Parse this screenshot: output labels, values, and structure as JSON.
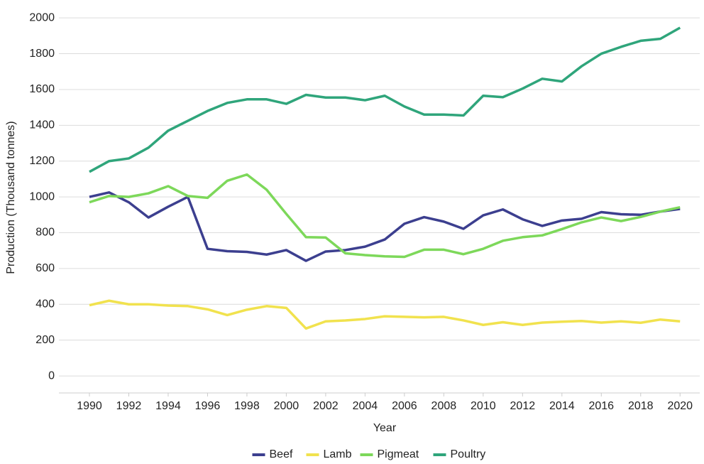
{
  "chart_data": {
    "type": "line",
    "x_label": "Year",
    "y_label": "Production (Thousand tonnes)",
    "x": [
      1990,
      1991,
      1992,
      1993,
      1994,
      1995,
      1996,
      1997,
      1998,
      1999,
      2000,
      2001,
      2002,
      2003,
      2004,
      2005,
      2006,
      2007,
      2008,
      2009,
      2010,
      2011,
      2012,
      2013,
      2014,
      2015,
      2016,
      2017,
      2018,
      2019,
      2020
    ],
    "series": [
      {
        "name": "Beef",
        "color": "#3c3f8f",
        "values": [
          1000,
          1025,
          970,
          885,
          945,
          1000,
          710,
          697,
          693,
          678,
          703,
          643,
          695,
          703,
          722,
          762,
          850,
          887,
          862,
          822,
          897,
          930,
          875,
          838,
          868,
          878,
          915,
          903,
          900,
          918,
          933
        ]
      },
      {
        "name": "Lamb",
        "color": "#f1e24e",
        "values": [
          395,
          420,
          400,
          400,
          393,
          390,
          372,
          340,
          370,
          390,
          380,
          265,
          305,
          310,
          318,
          333,
          330,
          327,
          330,
          310,
          285,
          300,
          285,
          298,
          303,
          307,
          298,
          305,
          297,
          315,
          305
        ]
      },
      {
        "name": "Pigmeat",
        "color": "#7dd85a",
        "values": [
          970,
          1005,
          1000,
          1020,
          1060,
          1005,
          995,
          1090,
          1125,
          1040,
          905,
          775,
          773,
          685,
          675,
          668,
          665,
          705,
          705,
          680,
          710,
          755,
          775,
          785,
          820,
          858,
          885,
          865,
          888,
          918,
          942
        ]
      },
      {
        "name": "Poultry",
        "color": "#2fa57b",
        "values": [
          1140,
          1200,
          1215,
          1275,
          1370,
          1425,
          1480,
          1525,
          1545,
          1545,
          1520,
          1570,
          1555,
          1555,
          1540,
          1565,
          1505,
          1460,
          1460,
          1455,
          1565,
          1557,
          1605,
          1660,
          1645,
          1730,
          1800,
          1838,
          1872,
          1883,
          1945
        ]
      }
    ],
    "xlim": [
      1988.45,
      2021
    ],
    "xticks": [
      1990,
      1992,
      1994,
      1996,
      1998,
      2000,
      2002,
      2004,
      2006,
      2008,
      2010,
      2012,
      2014,
      2016,
      2018,
      2020
    ],
    "ylim": [
      -95,
      2080
    ],
    "yticks": [
      0,
      200,
      400,
      600,
      800,
      1000,
      1200,
      1400,
      1600,
      1800,
      2000
    ],
    "grid": true,
    "legend": "bottom"
  }
}
